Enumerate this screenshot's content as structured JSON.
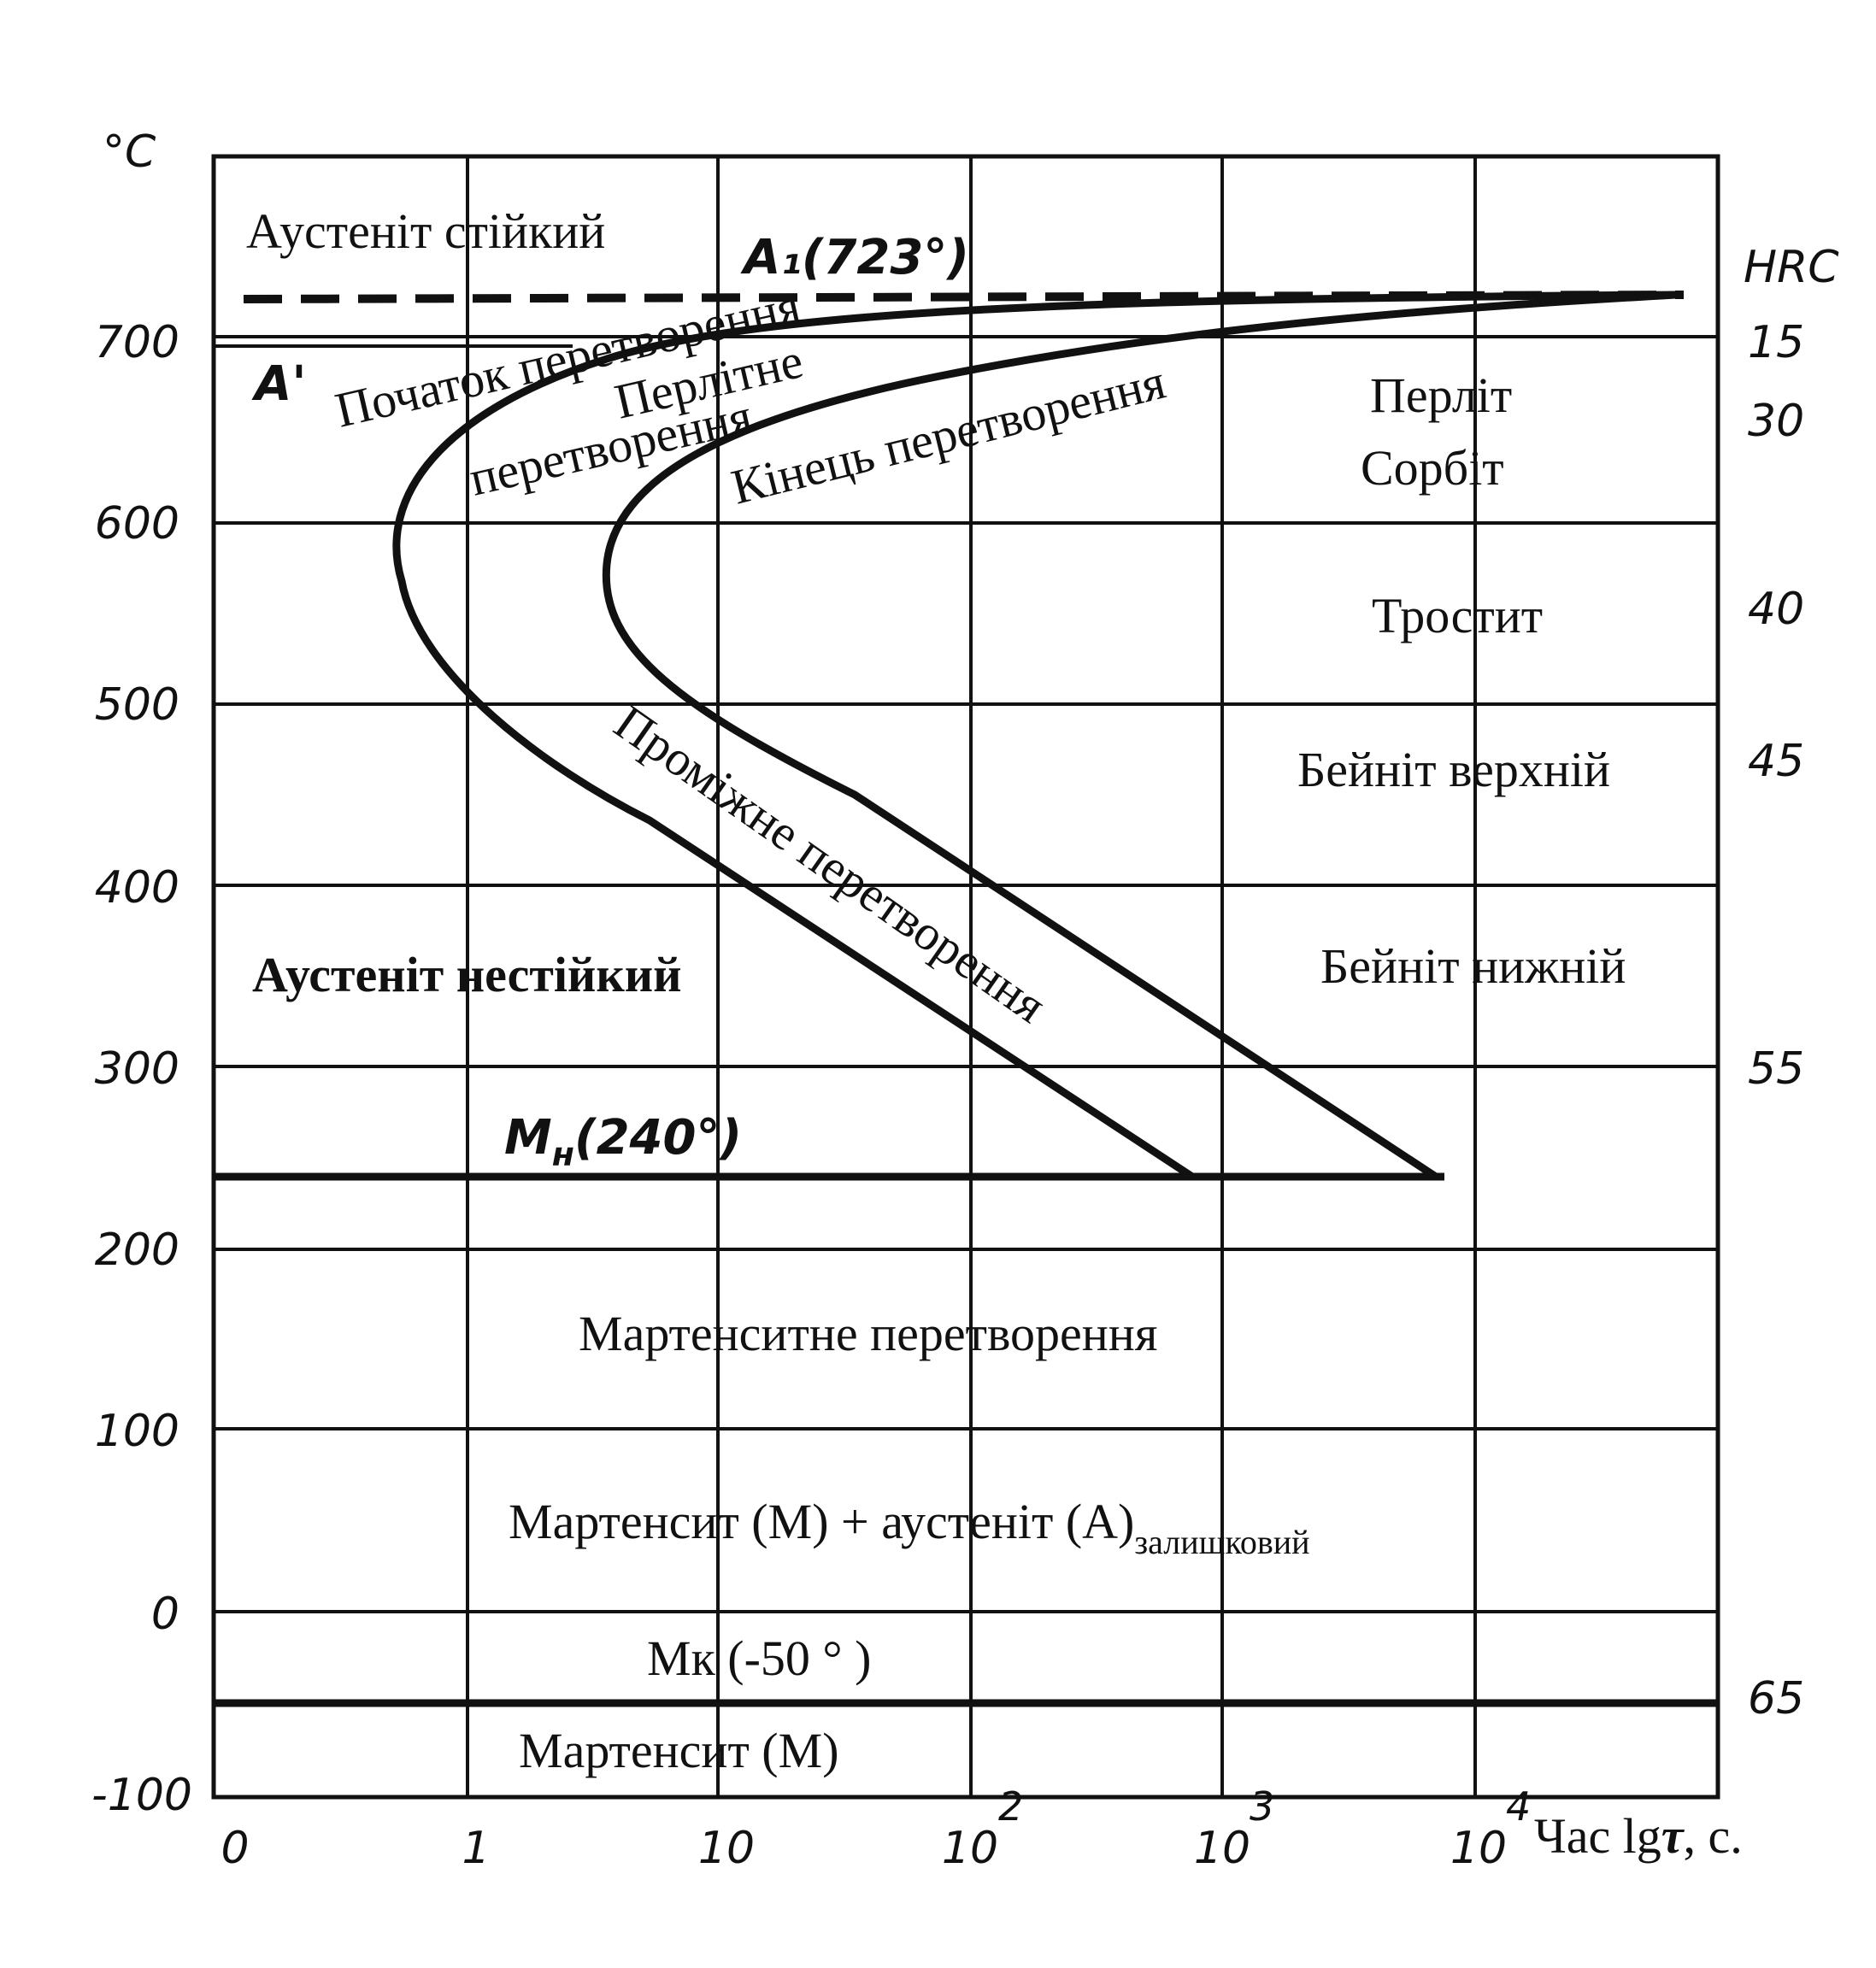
{
  "axes": {
    "y_unit": "°C",
    "y_ticks": [
      "700",
      "600",
      "500",
      "400",
      "300",
      "200",
      "100",
      "0",
      "-100"
    ],
    "x_ticks": [
      "0",
      "1",
      "10",
      "10",
      "10",
      "10"
    ],
    "x_exponents": [
      "2",
      "3",
      "4"
    ],
    "x_label_prefix": "Час lg",
    "x_label_symbol": "τ",
    "x_label_suffix": ", с.",
    "right_axis_unit": "HRC",
    "hrc_ticks": [
      "15",
      "30",
      "40",
      "45",
      "55",
      "65"
    ]
  },
  "lines": {
    "a1_label": "A₁(723°)",
    "a_prime_label": "A'",
    "mn_label_main": "M",
    "mn_label_sub": "н",
    "mn_label_rest": "(240°)"
  },
  "regions": {
    "austenite_stable": "Аустеніт стійкий",
    "start_transformation": "Початок перетворення",
    "pearlitic_1": "Перлітне",
    "pearlitic_2": "перетворення",
    "end_transformation": "Кінець перетворення",
    "pearlite": "Перліт",
    "sorbite": "Сорбіт",
    "troostite": "Тростит",
    "bainite_upper": "Бейніт верхній",
    "bainite_lower": "Бейніт нижній",
    "intermediate": "Проміжне перетворення",
    "austenite_unstable": "Аустеніт нестійкий",
    "martensitic": "Мартенситне перетворення",
    "mart_aust_main": "Мартенсит (М) +   аустеніт (А)",
    "mart_aust_sub": "залишковий",
    "mk": "Мк (-50 ° )",
    "martensite": "Мартенсит (М)"
  }
}
